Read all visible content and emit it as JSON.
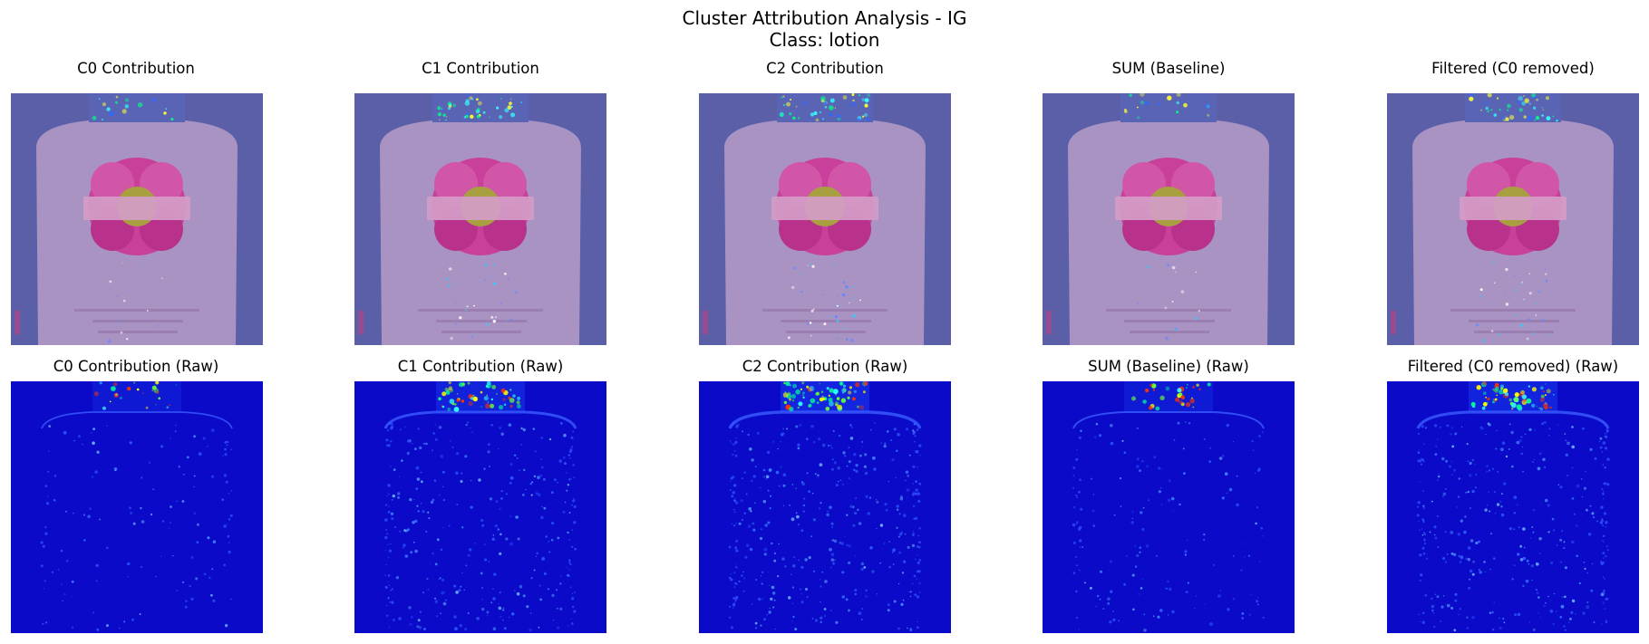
{
  "figure": {
    "title_line1": "Cluster Attribution Analysis - IG",
    "title_line2": "Class: lotion"
  },
  "panels": {
    "row1": [
      {
        "title": "C0 Contribution"
      },
      {
        "title": "C1 Contribution"
      },
      {
        "title": "C2 Contribution"
      },
      {
        "title": "SUM (Baseline)"
      },
      {
        "title": "Filtered (C0 removed)"
      }
    ],
    "row2": [
      {
        "title": "C0 Contribution (Raw)"
      },
      {
        "title": "C1 Contribution (Raw)"
      },
      {
        "title": "C2 Contribution (Raw)"
      },
      {
        "title": "SUM (Baseline) (Raw)"
      },
      {
        "title": "Filtered (C0 removed) (Raw)"
      }
    ]
  },
  "colors": {
    "overlay_background": "#5a5fa8",
    "bottle_body": "#b79cc8",
    "flower": "#c8409a",
    "raw_background": "#0a0ac8"
  }
}
